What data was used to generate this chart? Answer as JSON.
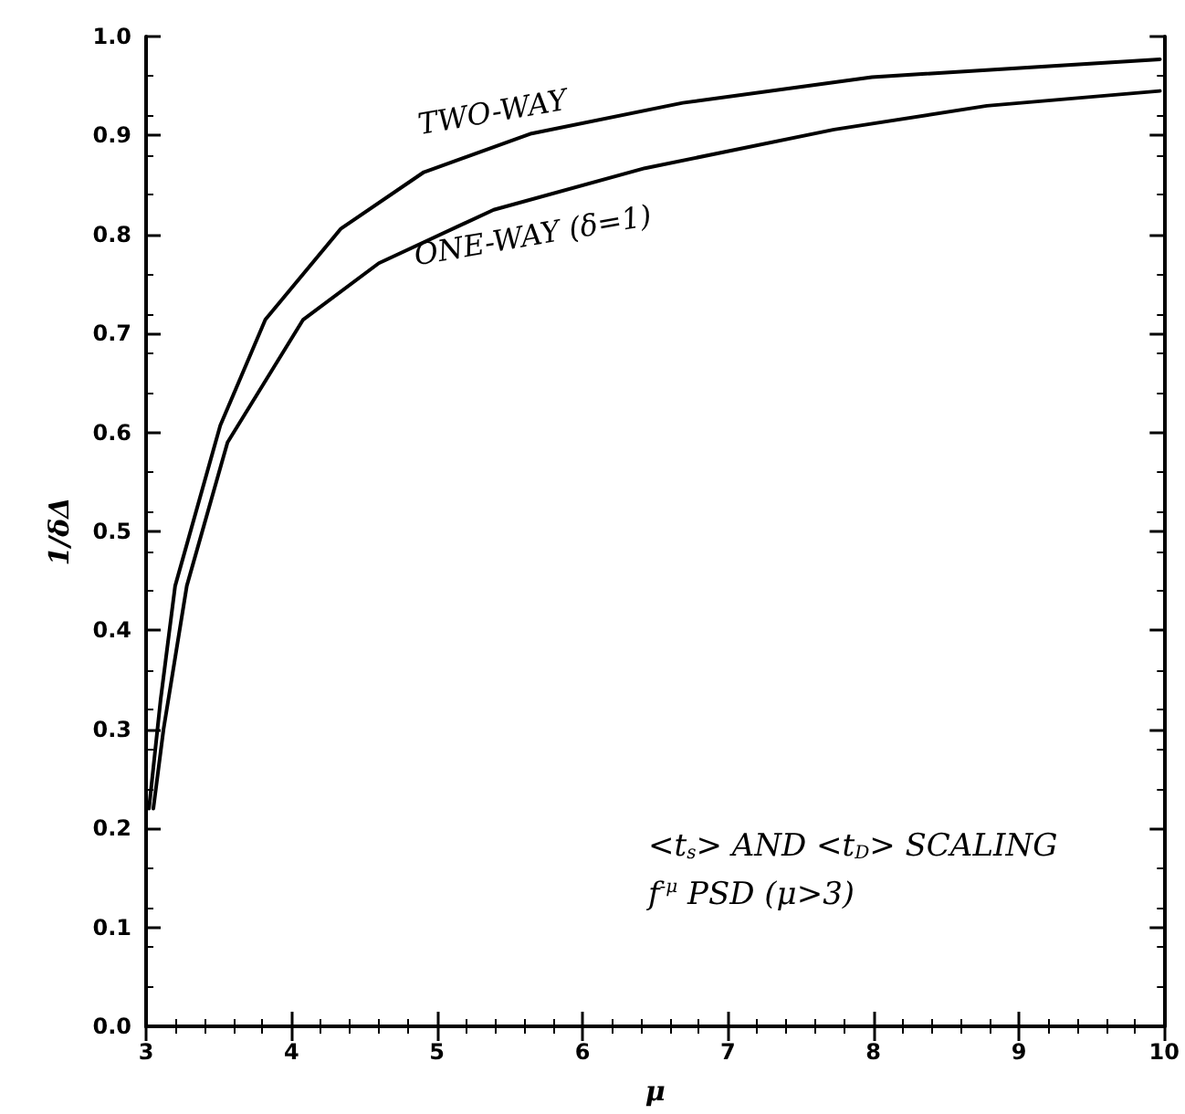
{
  "chart_data": {
    "type": "line",
    "xlabel": "μ",
    "ylabel": "1/δΔ",
    "xlim": [
      3,
      10
    ],
    "xticks": [
      3,
      4,
      5,
      6,
      7,
      8,
      9,
      10
    ],
    "ylim": [
      0,
      1
    ],
    "yticks": [
      {
        "value": 0,
        "label": "0.0"
      },
      0.1,
      0.2,
      0.3,
      0.4,
      0.5,
      0.6,
      0.7,
      0.8,
      0.9,
      {
        "value": 1,
        "label": "1.0"
      }
    ],
    "series": [
      {
        "name": "TWO-WAY",
        "color": "#000000",
        "x": [
          3.02,
          3.1,
          3.2,
          3.51,
          3.82,
          4.34,
          4.91,
          5.65,
          6.69,
          7.99,
          9.97
        ],
        "values": [
          0.22,
          0.33,
          0.445,
          0.607,
          0.714,
          0.806,
          0.863,
          0.902,
          0.933,
          0.959,
          0.977
        ]
      },
      {
        "name": "ONE-WAY (δ=1)",
        "color": "#000000",
        "x": [
          3.05,
          3.12,
          3.28,
          3.56,
          4.08,
          4.6,
          5.39,
          6.43,
          7.73,
          8.78,
          9.97
        ],
        "values": [
          0.22,
          0.3,
          0.445,
          0.59,
          0.714,
          0.771,
          0.825,
          0.867,
          0.906,
          0.93,
          0.945
        ]
      }
    ],
    "annotations": [
      "<t$_{s}$> AND <t$_{D}$> SCALING",
      "f$^{-μ}$ PSD (μ>3)"
    ],
    "grid": false,
    "legend": false,
    "marker": "none",
    "line_style": "solid"
  }
}
